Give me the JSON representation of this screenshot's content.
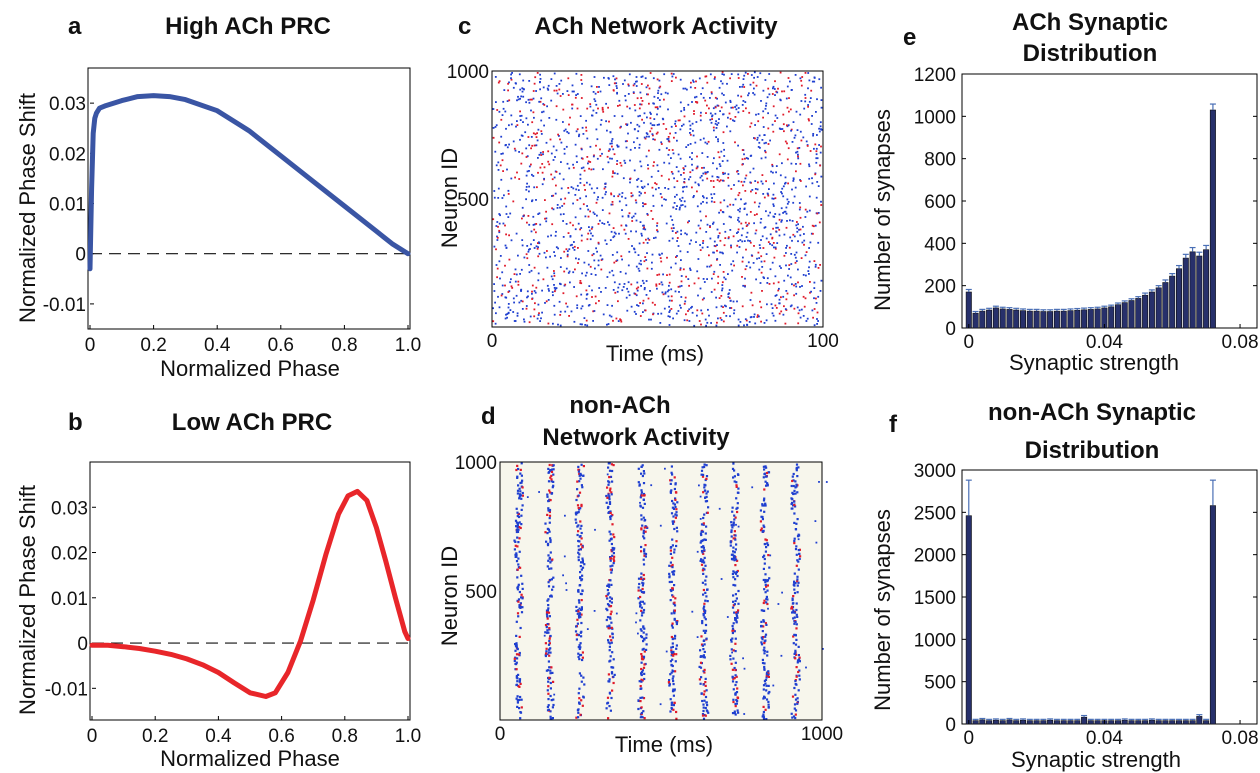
{
  "panels": {
    "a": {
      "letter": "a",
      "title": "High ACh PRC",
      "xlabel": "Normalized Phase",
      "ylabel": "Normalized Phase Shift",
      "xticks": [
        "0",
        "0.2",
        "0.4",
        "0.6",
        "0.8",
        "1.0"
      ],
      "yticks": [
        "-0.01",
        "0",
        "0.01",
        "0.02",
        "0.03"
      ]
    },
    "b": {
      "letter": "b",
      "title": "Low ACh PRC",
      "xlabel": "Normalized Phase",
      "ylabel": "Normalized Phase Shift",
      "xticks": [
        "0",
        "0.2",
        "0.4",
        "0.6",
        "0.8",
        "1.0"
      ],
      "yticks": [
        "-0.01",
        "0",
        "0.01",
        "0.02",
        "0.03"
      ]
    },
    "c": {
      "letter": "c",
      "title": "ACh Network Activity",
      "xlabel": "Time (ms)",
      "ylabel": "Neuron ID",
      "xticks": [
        "0",
        "100"
      ],
      "yticks": [
        "500",
        "1000"
      ]
    },
    "d": {
      "letter": "d",
      "title_line1": "non-ACh",
      "title_line2": "Network Activity",
      "xlabel": "Time (ms)",
      "ylabel": "Neuron ID",
      "xticks": [
        "0",
        "1000"
      ],
      "yticks": [
        "500",
        "1000"
      ]
    },
    "e": {
      "letter": "e",
      "title_line1": "ACh Synaptic",
      "title_line2": "Distribution",
      "xlabel": "Synaptic strength",
      "ylabel": "Number of synapses",
      "xticks": [
        "0",
        "0.04",
        "0.08"
      ],
      "yticks": [
        "0",
        "200",
        "400",
        "600",
        "800",
        "1000",
        "1200"
      ]
    },
    "f": {
      "letter": "f",
      "title_line1": "non-ACh Synaptic",
      "title_line2": "Distribution",
      "xlabel": "Synaptic strength",
      "ylabel": "Number of synapses",
      "xticks": [
        "0",
        "0.04",
        "0.08"
      ],
      "yticks": [
        "0",
        "500",
        "1000",
        "1500",
        "2000",
        "2500",
        "3000"
      ]
    }
  },
  "colors": {
    "blue_line": "#3a55a4",
    "red_line": "#e8262a",
    "bar_fill": "#27306b",
    "error_bar": "#4a6fb5",
    "raster_blue": "#1f3fd0",
    "raster_red": "#e01a2a"
  },
  "chart_data": [
    {
      "panel": "a",
      "type": "line",
      "title": "High ACh PRC",
      "xlabel": "Normalized Phase",
      "ylabel": "Normalized Phase Shift",
      "xlim": [
        0,
        1
      ],
      "ylim": [
        -0.015,
        0.037
      ],
      "reference_line": {
        "y": 0,
        "style": "dashed"
      },
      "series": [
        {
          "color": "#3a55a4",
          "x": [
            0,
            0.005,
            0.01,
            0.015,
            0.02,
            0.03,
            0.05,
            0.1,
            0.15,
            0.2,
            0.25,
            0.3,
            0.4,
            0.5,
            0.6,
            0.7,
            0.8,
            0.9,
            0.95,
            1.0
          ],
          "y": [
            -0.003,
            0.013,
            0.024,
            0.027,
            0.028,
            0.029,
            0.0295,
            0.0305,
            0.0313,
            0.0315,
            0.0313,
            0.0307,
            0.0285,
            0.0245,
            0.0195,
            0.0145,
            0.0095,
            0.0045,
            0.002,
            0.0
          ]
        }
      ]
    },
    {
      "panel": "b",
      "type": "line",
      "title": "Low ACh PRC",
      "xlabel": "Normalized Phase",
      "ylabel": "Normalized Phase Shift",
      "xlim": [
        0,
        1
      ],
      "ylim": [
        -0.017,
        0.04
      ],
      "reference_line": {
        "y": 0,
        "style": "dashed"
      },
      "series": [
        {
          "color": "#e8262a",
          "x": [
            0,
            0.05,
            0.1,
            0.15,
            0.2,
            0.25,
            0.3,
            0.35,
            0.4,
            0.45,
            0.5,
            0.55,
            0.58,
            0.62,
            0.66,
            0.7,
            0.74,
            0.78,
            0.81,
            0.84,
            0.87,
            0.9,
            0.93,
            0.96,
            0.99,
            1.0
          ],
          "y": [
            -0.0005,
            -0.0005,
            -0.0008,
            -0.0012,
            -0.0018,
            -0.0025,
            -0.0035,
            -0.0048,
            -0.0065,
            -0.0088,
            -0.011,
            -0.0118,
            -0.011,
            -0.0065,
            0.0005,
            0.0095,
            0.0195,
            0.0285,
            0.0325,
            0.0335,
            0.0315,
            0.0255,
            0.018,
            0.01,
            0.0025,
            0.001
          ]
        }
      ]
    },
    {
      "panel": "c",
      "type": "scatter",
      "title": "ACh Network Activity",
      "xlabel": "Time (ms)",
      "ylabel": "Neuron ID",
      "xlim": [
        0,
        100
      ],
      "ylim": [
        0,
        1000
      ],
      "description": "asynchronous raster: spikes uniformly scattered",
      "series": [
        {
          "color": "#1f3fd0"
        },
        {
          "color": "#e01a2a"
        }
      ]
    },
    {
      "panel": "d",
      "type": "scatter",
      "title": "non-ACh Network Activity",
      "xlabel": "Time (ms)",
      "ylabel": "Neuron ID",
      "xlim": [
        0,
        1000
      ],
      "ylim": [
        0,
        1000
      ],
      "description": "synchronous raster: spikes clustered in vertical bursts",
      "burst_times": [
        55,
        150,
        245,
        340,
        440,
        535,
        630,
        725,
        820,
        915
      ],
      "series": [
        {
          "color": "#1f3fd0"
        },
        {
          "color": "#e01a2a"
        }
      ]
    },
    {
      "panel": "e",
      "type": "bar",
      "title": "ACh Synaptic Distribution",
      "xlabel": "Synaptic strength",
      "ylabel": "Number of synapses",
      "xlim": [
        -0.002,
        0.085
      ],
      "ylim": [
        0,
        1200
      ],
      "bin_start": 0,
      "bin_width": 0.002,
      "values": [
        170,
        70,
        80,
        85,
        95,
        90,
        88,
        85,
        82,
        80,
        80,
        78,
        78,
        80,
        80,
        82,
        84,
        86,
        88,
        90,
        95,
        100,
        110,
        120,
        130,
        140,
        155,
        170,
        190,
        215,
        245,
        280,
        330,
        360,
        340,
        370,
        1030
      ],
      "errors": [
        12,
        8,
        8,
        8,
        8,
        8,
        8,
        8,
        8,
        8,
        8,
        8,
        8,
        8,
        8,
        8,
        8,
        8,
        8,
        8,
        8,
        8,
        8,
        8,
        8,
        8,
        10,
        10,
        10,
        12,
        12,
        15,
        18,
        20,
        18,
        20,
        28
      ]
    },
    {
      "panel": "f",
      "type": "bar",
      "title": "non-ACh Synaptic Distribution",
      "xlabel": "Synaptic strength",
      "ylabel": "Number of synapses",
      "xlim": [
        -0.002,
        0.085
      ],
      "ylim": [
        0,
        3000
      ],
      "bin_start": 0,
      "bin_width": 0.002,
      "values": [
        2460,
        40,
        50,
        40,
        45,
        40,
        50,
        40,
        45,
        40,
        40,
        40,
        45,
        40,
        40,
        40,
        40,
        80,
        40,
        40,
        40,
        40,
        40,
        45,
        40,
        40,
        40,
        45,
        40,
        40,
        40,
        40,
        40,
        40,
        90,
        40,
        2580
      ],
      "errors": [
        420,
        15,
        15,
        15,
        15,
        15,
        15,
        15,
        15,
        15,
        15,
        15,
        15,
        15,
        15,
        15,
        15,
        20,
        15,
        15,
        15,
        15,
        15,
        15,
        15,
        15,
        15,
        15,
        15,
        15,
        15,
        15,
        15,
        15,
        20,
        15,
        300
      ]
    }
  ]
}
